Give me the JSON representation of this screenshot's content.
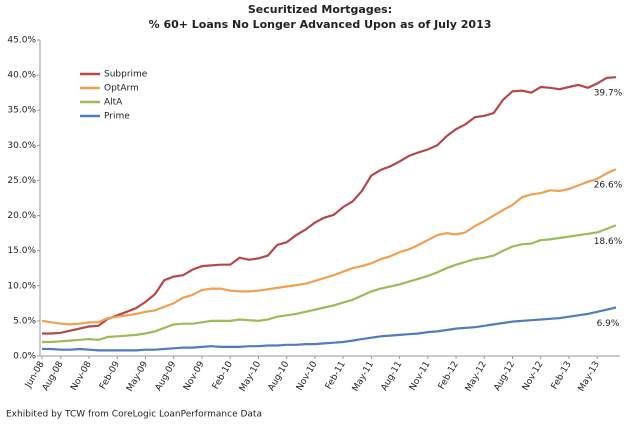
{
  "chart_data": {
    "type": "line",
    "title": "Securitized Mortgages:",
    "subtitle": "% 60+ Loans No Longer Advanced Upon as of July 2013",
    "source": "Exhibited by TCW from CoreLogic LoanPerformance Data",
    "categories": [
      "Jun-08",
      null,
      "Aug-08",
      null,
      null,
      "Nov-08",
      null,
      null,
      "Feb-09",
      null,
      null,
      "May-09",
      null,
      null,
      "Aug-09",
      null,
      null,
      "Nov-09",
      null,
      null,
      "Feb-10",
      null,
      null,
      "May-10",
      null,
      null,
      "Aug-10",
      null,
      null,
      "Nov-10",
      null,
      null,
      "Feb-11",
      null,
      null,
      "May-11",
      null,
      null,
      "Aug-11",
      null,
      null,
      "Nov-11",
      null,
      null,
      "Feb-12",
      null,
      null,
      "May-12",
      null,
      null,
      "Aug-12",
      null,
      null,
      "Nov-12",
      null,
      null,
      "Feb-13",
      null,
      null,
      "May-13",
      null,
      null
    ],
    "series": [
      {
        "name": "Subprime",
        "color": "#b5494a",
        "end_label": "39.7%",
        "values": [
          3.2,
          3.2,
          3.3,
          3.6,
          3.9,
          4.2,
          4.3,
          5.3,
          5.8,
          6.3,
          6.8,
          7.7,
          8.8,
          10.8,
          11.3,
          11.5,
          12.3,
          12.8,
          12.9,
          13.0,
          13.0,
          14.0,
          13.7,
          13.9,
          14.3,
          15.8,
          16.2,
          17.2,
          18.0,
          19.0,
          19.7,
          20.1,
          21.2,
          22.0,
          23.5,
          25.7,
          26.5,
          27.0,
          27.7,
          28.5,
          29.0,
          29.4,
          30.0,
          31.3,
          32.3,
          33.0,
          34.0,
          34.2,
          34.6,
          36.5,
          37.7,
          37.8,
          37.5,
          38.3,
          38.2,
          38.0,
          38.3,
          38.6,
          38.2,
          38.8,
          39.6,
          39.7
        ]
      },
      {
        "name": "OptArm",
        "color": "#f0a050",
        "end_label": "26.6%",
        "values": [
          5.0,
          4.8,
          4.6,
          4.5,
          4.6,
          4.8,
          4.8,
          5.4,
          5.6,
          5.8,
          6.0,
          6.3,
          6.5,
          7.0,
          7.5,
          8.3,
          8.7,
          9.4,
          9.6,
          9.6,
          9.3,
          9.2,
          9.2,
          9.3,
          9.5,
          9.7,
          9.9,
          10.1,
          10.3,
          10.7,
          11.1,
          11.5,
          12.0,
          12.5,
          12.8,
          13.2,
          13.8,
          14.2,
          14.8,
          15.2,
          15.8,
          16.5,
          17.2,
          17.5,
          17.3,
          17.6,
          18.5,
          19.2,
          20.0,
          20.8,
          21.5,
          22.6,
          23.0,
          23.2,
          23.6,
          23.5,
          23.8,
          24.3,
          24.8,
          25.2,
          26.0,
          26.6
        ]
      },
      {
        "name": "AltA",
        "color": "#9bbb59",
        "end_label": "18.6%",
        "values": [
          2.0,
          2.0,
          2.1,
          2.2,
          2.3,
          2.4,
          2.3,
          2.7,
          2.8,
          2.9,
          3.0,
          3.2,
          3.5,
          4.0,
          4.5,
          4.6,
          4.6,
          4.8,
          5.0,
          5.0,
          5.0,
          5.2,
          5.1,
          5.0,
          5.2,
          5.6,
          5.8,
          6.0,
          6.3,
          6.6,
          6.9,
          7.2,
          7.6,
          8.0,
          8.6,
          9.2,
          9.6,
          9.9,
          10.2,
          10.6,
          11.0,
          11.4,
          11.9,
          12.5,
          13.0,
          13.4,
          13.8,
          14.0,
          14.3,
          15.0,
          15.6,
          15.9,
          16.0,
          16.5,
          16.6,
          16.8,
          17.0,
          17.2,
          17.4,
          17.6,
          18.1,
          18.6
        ]
      },
      {
        "name": "Prime",
        "color": "#4f7dbd",
        "end_label": "6.9%",
        "values": [
          1.0,
          1.0,
          0.9,
          0.9,
          1.0,
          0.9,
          0.8,
          0.8,
          0.8,
          0.8,
          0.8,
          0.9,
          0.9,
          1.0,
          1.1,
          1.2,
          1.2,
          1.3,
          1.4,
          1.3,
          1.3,
          1.3,
          1.4,
          1.4,
          1.5,
          1.5,
          1.6,
          1.6,
          1.7,
          1.7,
          1.8,
          1.9,
          2.0,
          2.2,
          2.4,
          2.6,
          2.8,
          2.9,
          3.0,
          3.1,
          3.2,
          3.4,
          3.5,
          3.7,
          3.9,
          4.0,
          4.1,
          4.3,
          4.5,
          4.7,
          4.9,
          5.0,
          5.1,
          5.2,
          5.3,
          5.4,
          5.6,
          5.8,
          6.0,
          6.3,
          6.6,
          6.9
        ]
      }
    ],
    "ylim": [
      0,
      45
    ],
    "yticks": [
      {
        "value": 0,
        "label": "0.0%"
      },
      {
        "value": 5,
        "label": "5.0%"
      },
      {
        "value": 10,
        "label": "10.0%"
      },
      {
        "value": 15,
        "label": "15.0%"
      },
      {
        "value": 20,
        "label": "20.0%"
      },
      {
        "value": 25,
        "label": "25.0%"
      },
      {
        "value": 30,
        "label": "30.0%"
      },
      {
        "value": 35,
        "label": "35.0%"
      },
      {
        "value": 40,
        "label": "40.0%"
      },
      {
        "value": 45,
        "label": "45.0%"
      }
    ],
    "grid": false,
    "legend": "upper left"
  }
}
